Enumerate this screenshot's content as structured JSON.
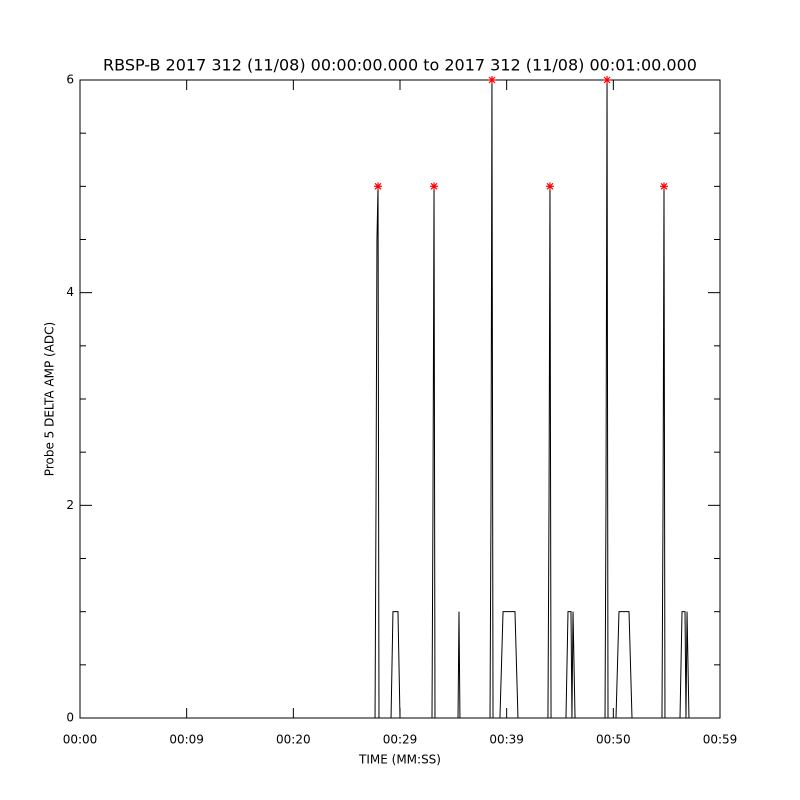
{
  "chart_data": {
    "type": "line",
    "title": "RBSP-B 2017 312 (11/08) 00:00:00.000 to 2017 312 (11/08) 00:01:00.000",
    "x_label": "TIME (MM:SS)",
    "y_label": "Probe 5 DELTA AMP (ADC)",
    "xlim": [
      0,
      60
    ],
    "xticks": [
      {
        "value": 0,
        "label": "00:00"
      },
      {
        "value": 10,
        "label": "00:09"
      },
      {
        "value": 20,
        "label": "00:20"
      },
      {
        "value": 30,
        "label": "00:29"
      },
      {
        "value": 40,
        "label": "00:39"
      },
      {
        "value": 50,
        "label": "00:50"
      },
      {
        "value": 60,
        "label": "00:59"
      }
    ],
    "ylim": [
      0,
      6
    ],
    "yticks": [
      0,
      2,
      4,
      6
    ],
    "yminorticks": [
      0.5,
      1,
      1.5,
      2.5,
      3,
      3.5,
      4.5,
      5,
      5.5
    ],
    "series": [
      {
        "color": "#000000",
        "x": [
          0,
          27.66,
          27.75,
          27.84,
          27.94,
          28.03,
          29.16,
          29.34,
          29.81,
          30.0,
          33.0,
          33.09,
          33.19,
          33.28,
          35.44,
          35.53,
          35.62,
          38.44,
          38.53,
          38.62,
          38.72,
          39.37,
          39.66,
          40.78,
          41.06,
          43.87,
          43.97,
          44.06,
          44.16,
          45.56,
          45.75,
          46.03,
          46.12,
          46.22,
          46.41,
          49.22,
          49.31,
          49.41,
          49.5,
          50.25,
          50.53,
          51.47,
          51.75,
          54.56,
          54.66,
          54.75,
          54.84,
          56.25,
          56.44,
          56.72,
          56.81,
          56.91,
          57.09,
          60
        ],
        "values": [
          0,
          0,
          2,
          4.5,
          5,
          0,
          0,
          1,
          1,
          0,
          0,
          2,
          5,
          0,
          0,
          1,
          0,
          0,
          2,
          6,
          0,
          0,
          1,
          1,
          0,
          0,
          2,
          5,
          0,
          0,
          1,
          1,
          0,
          1,
          0,
          0,
          2,
          6,
          0,
          0,
          1,
          1,
          0,
          0,
          2,
          5,
          0,
          0,
          1,
          1,
          0,
          1,
          0,
          0
        ]
      },
      {
        "color": "#ff0000",
        "marker": "asterisk",
        "x": [
          27.94,
          33.19,
          38.62,
          44.06,
          49.41,
          54.75
        ],
        "values": [
          5,
          5,
          6,
          5,
          6,
          5
        ]
      }
    ]
  }
}
